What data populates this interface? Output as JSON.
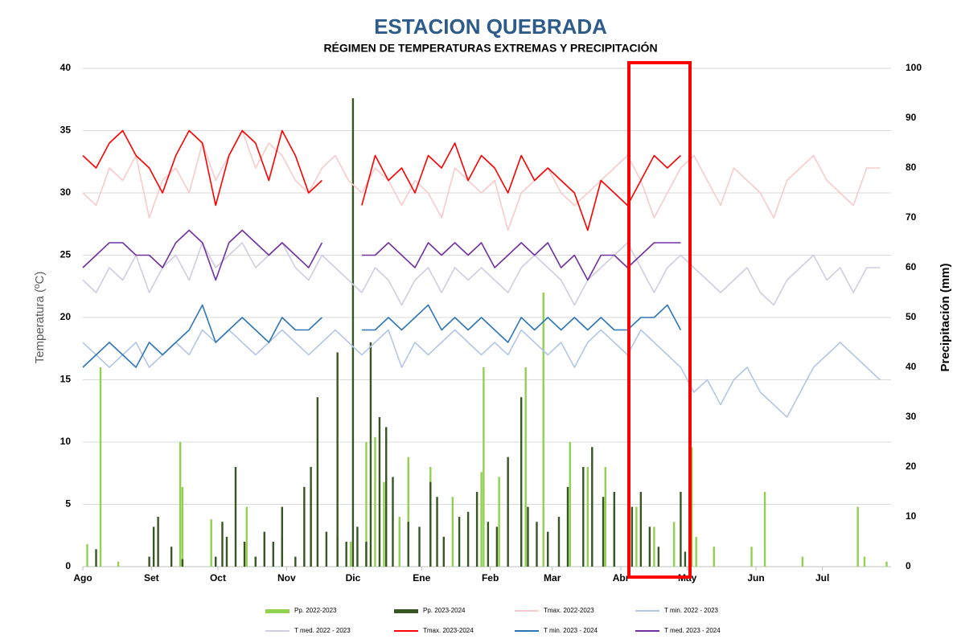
{
  "chart_data": {
    "type": "bar-line",
    "title": "ESTACION QUEBRADA",
    "subtitle": "RÉGIMEN DE TEMPERATURAS EXTREMAS Y PRECIPITACIÓN",
    "y_label": "Temperatura (ºC)",
    "y2_label": "Precipitación (mm)",
    "xlim": [
      0,
      365
    ],
    "xticks": [
      {
        "value": 0,
        "label": "Ago"
      },
      {
        "value": 31,
        "label": "Set"
      },
      {
        "value": 61,
        "label": "Oct"
      },
      {
        "value": 92,
        "label": "Nov"
      },
      {
        "value": 122,
        "label": "Dic"
      },
      {
        "value": 153,
        "label": "Ene"
      },
      {
        "value": 184,
        "label": "Feb"
      },
      {
        "value": 212,
        "label": "Mar"
      },
      {
        "value": 243,
        "label": "Abr"
      },
      {
        "value": 273,
        "label": "May"
      },
      {
        "value": 304,
        "label": "Jun"
      },
      {
        "value": 334,
        "label": "Jul"
      }
    ],
    "ylim": [
      0,
      40
    ],
    "yticks": [
      0,
      5,
      10,
      15,
      20,
      25,
      30,
      35,
      40
    ],
    "y2lim": [
      0,
      100
    ],
    "y2ticks": [
      0,
      10,
      20,
      30,
      40,
      50,
      60,
      70,
      80,
      90,
      100
    ],
    "grid": true,
    "legend": "bottom",
    "series": [
      {
        "name": "Pp. 2022-2023",
        "type": "bar",
        "axis": "y2",
        "color": "#92d050",
        "x": [
          2,
          8,
          16,
          44,
          45,
          58,
          74,
          90,
          103,
          115,
          121,
          128,
          132,
          136,
          143,
          147,
          157,
          167,
          180,
          181,
          188,
          200,
          208,
          220,
          228,
          236,
          240,
          250,
          258,
          267,
          275,
          277,
          285,
          302,
          308,
          325,
          350,
          353,
          363
        ],
        "values": [
          4.5,
          40,
          1,
          25,
          16,
          9.5,
          12,
          6,
          16,
          6,
          5,
          25,
          26,
          17,
          10,
          22,
          20,
          14,
          19,
          40,
          18,
          40,
          55,
          25,
          20,
          20,
          12,
          12,
          8,
          9,
          24,
          6,
          4,
          4,
          15,
          2,
          12,
          2,
          1
        ]
      },
      {
        "name": "Pp. 2023-2024",
        "type": "bar",
        "axis": "y2",
        "color": "#375623",
        "x": [
          6,
          30,
          32,
          34,
          40,
          45,
          60,
          63,
          65,
          69,
          73,
          78,
          82,
          86,
          90,
          96,
          100,
          103,
          106,
          110,
          115,
          119,
          122,
          124,
          128,
          130,
          134,
          137,
          140,
          147,
          152,
          157,
          160,
          163,
          170,
          174,
          178,
          183,
          187,
          192,
          198,
          201,
          205,
          210,
          215,
          219,
          226,
          230,
          235,
          240,
          248,
          252,
          256,
          260,
          270,
          272
        ],
        "values": [
          3.5,
          2,
          8,
          10,
          4,
          1.5,
          2,
          9,
          6,
          20,
          5,
          2,
          7,
          5,
          12,
          2,
          16,
          20,
          34,
          7,
          43,
          5,
          94,
          8,
          5,
          45,
          30,
          28,
          18,
          9,
          8,
          17,
          14,
          6,
          10,
          11,
          15,
          9,
          8,
          22,
          34,
          12,
          9,
          7,
          10,
          16,
          20,
          24,
          14,
          15,
          12,
          15,
          8,
          4,
          15,
          3
        ]
      },
      {
        "name": "Tmax. 2022-2023",
        "type": "line",
        "color": "#f8cbcb",
        "x": [
          0,
          6,
          12,
          18,
          24,
          30,
          36,
          42,
          48,
          54,
          60,
          66,
          72,
          78,
          84,
          90,
          96,
          102,
          108,
          114,
          120,
          126,
          132,
          138,
          144,
          150,
          156,
          162,
          168,
          174,
          180,
          186,
          192,
          198,
          204,
          210,
          216,
          222,
          228,
          234,
          240,
          246,
          252,
          258,
          264,
          270,
          276,
          282,
          288,
          294,
          300,
          306,
          312,
          318,
          324,
          330,
          336,
          342,
          348,
          354,
          360
        ],
        "values": [
          30,
          29,
          32,
          31,
          33,
          28,
          31,
          32,
          30,
          34,
          31,
          33,
          35,
          32,
          34,
          33,
          31,
          30,
          32,
          33,
          31,
          30,
          32,
          31,
          29,
          31,
          30,
          28,
          32,
          31,
          30,
          31,
          27,
          30,
          31,
          32,
          30,
          29,
          30,
          31,
          32,
          33,
          31,
          28,
          30,
          32,
          33,
          31,
          29,
          32,
          31,
          30,
          28,
          31,
          32,
          33,
          31,
          30,
          29,
          32,
          32
        ]
      },
      {
        "name": "T min. 2022 - 2023",
        "type": "line",
        "color": "#b4c6e7",
        "x": [
          0,
          6,
          12,
          18,
          24,
          30,
          36,
          42,
          48,
          54,
          60,
          66,
          72,
          78,
          84,
          90,
          96,
          102,
          108,
          114,
          120,
          126,
          132,
          138,
          144,
          150,
          156,
          162,
          168,
          174,
          180,
          186,
          192,
          198,
          204,
          210,
          216,
          222,
          228,
          234,
          240,
          246,
          252,
          258,
          264,
          270,
          276,
          282,
          288,
          294,
          300,
          306,
          312,
          318,
          324,
          330,
          336,
          342,
          348,
          354,
          360
        ],
        "values": [
          18,
          17,
          16,
          17,
          18,
          16,
          17,
          18,
          17,
          19,
          18,
          19,
          18,
          17,
          18,
          19,
          18,
          17,
          18,
          19,
          18,
          17,
          18,
          19,
          16,
          18,
          17,
          18,
          19,
          18,
          17,
          18,
          17,
          19,
          18,
          17,
          18,
          16,
          18,
          19,
          18,
          17,
          19,
          18,
          17,
          16,
          14,
          15,
          13,
          15,
          16,
          14,
          13,
          12,
          14,
          16,
          17,
          18,
          17,
          16,
          15
        ]
      },
      {
        "name": "T med. 2022 - 2023",
        "type": "line",
        "color": "#d0cde1",
        "x": [
          0,
          6,
          12,
          18,
          24,
          30,
          36,
          42,
          48,
          54,
          60,
          66,
          72,
          78,
          84,
          90,
          96,
          102,
          108,
          114,
          120,
          126,
          132,
          138,
          144,
          150,
          156,
          162,
          168,
          174,
          180,
          186,
          192,
          198,
          204,
          210,
          216,
          222,
          228,
          234,
          240,
          246,
          252,
          258,
          264,
          270,
          276,
          282,
          288,
          294,
          300,
          306,
          312,
          318,
          324,
          330,
          336,
          342,
          348,
          354,
          360
        ],
        "values": [
          23,
          22,
          24,
          23,
          25,
          22,
          24,
          25,
          23,
          26,
          24,
          25,
          26,
          24,
          25,
          26,
          24,
          23,
          25,
          24,
          23,
          22,
          24,
          23,
          21,
          23,
          24,
          22,
          24,
          23,
          24,
          23,
          22,
          24,
          25,
          24,
          23,
          21,
          23,
          24,
          25,
          26,
          24,
          22,
          24,
          25,
          24,
          23,
          22,
          23,
          24,
          22,
          21,
          23,
          24,
          25,
          23,
          24,
          22,
          24,
          24
        ]
      },
      {
        "name": "Tmax. 2023-2024",
        "type": "line",
        "color": "#ff0000",
        "x": [
          0,
          6,
          12,
          18,
          24,
          30,
          36,
          42,
          48,
          54,
          60,
          66,
          72,
          78,
          84,
          90,
          96,
          102,
          108,
          114,
          120,
          126,
          132,
          138,
          144,
          150,
          156,
          162,
          168,
          174,
          180,
          186,
          192,
          198,
          204,
          210,
          216,
          222,
          228,
          234,
          240,
          246,
          252,
          258,
          264,
          270
        ],
        "values": [
          33,
          32,
          34,
          35,
          33,
          32,
          30,
          33,
          35,
          34,
          29,
          33,
          35,
          34,
          31,
          35,
          33,
          30,
          31,
          null,
          null,
          29,
          33,
          31,
          32,
          30,
          33,
          32,
          34,
          31,
          33,
          32,
          30,
          33,
          31,
          32,
          31,
          30,
          27,
          31,
          30,
          29,
          31,
          33,
          32,
          33
        ]
      },
      {
        "name": "T min. 2023 - 2024",
        "type": "line",
        "color": "#2e75b6",
        "x": [
          0,
          6,
          12,
          18,
          24,
          30,
          36,
          42,
          48,
          54,
          60,
          66,
          72,
          78,
          84,
          90,
          96,
          102,
          108,
          114,
          120,
          126,
          132,
          138,
          144,
          150,
          156,
          162,
          168,
          174,
          180,
          186,
          192,
          198,
          204,
          210,
          216,
          222,
          228,
          234,
          240,
          246,
          252,
          258,
          264,
          270
        ],
        "values": [
          16,
          17,
          18,
          17,
          16,
          18,
          17,
          18,
          19,
          21,
          18,
          19,
          20,
          19,
          18,
          20,
          19,
          19,
          20,
          null,
          null,
          19,
          19,
          20,
          19,
          20,
          21,
          19,
          20,
          19,
          20,
          19,
          18,
          20,
          19,
          20,
          19,
          20,
          19,
          20,
          19,
          19,
          20,
          20,
          21,
          19
        ]
      },
      {
        "name": "T med. 2023 - 2024",
        "type": "line",
        "color": "#7030a0",
        "x": [
          0,
          6,
          12,
          18,
          24,
          30,
          36,
          42,
          48,
          54,
          60,
          66,
          72,
          78,
          84,
          90,
          96,
          102,
          108,
          114,
          120,
          126,
          132,
          138,
          144,
          150,
          156,
          162,
          168,
          174,
          180,
          186,
          192,
          198,
          204,
          210,
          216,
          222,
          228,
          234,
          240,
          246,
          252,
          258,
          264,
          270
        ],
        "values": [
          24,
          25,
          26,
          26,
          25,
          25,
          24,
          26,
          27,
          26,
          23,
          26,
          27,
          26,
          25,
          26,
          25,
          24,
          26,
          null,
          null,
          25,
          25,
          26,
          25,
          24,
          26,
          25,
          26,
          25,
          26,
          24,
          25,
          26,
          25,
          26,
          24,
          25,
          23,
          25,
          25,
          24,
          25,
          26,
          26,
          26
        ]
      }
    ]
  }
}
